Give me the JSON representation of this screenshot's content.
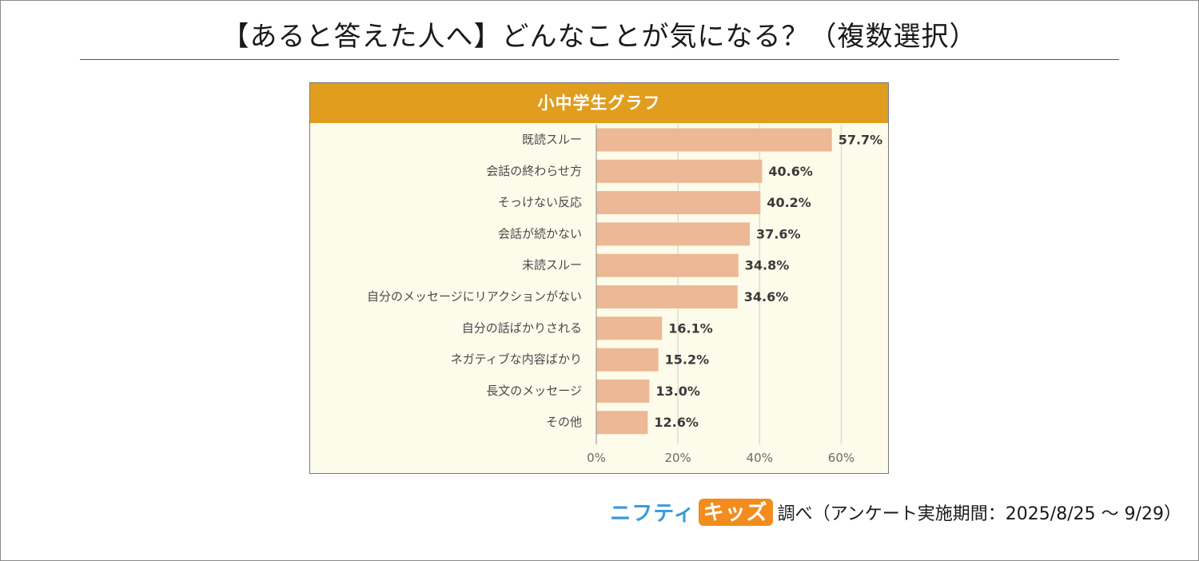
{
  "page": {
    "title": "【あると答えた人へ】どんなことが気になる？（複数選択）",
    "footer": {
      "brand_part1": "ニフティ",
      "brand_part2": "キッズ",
      "note": "調べ（アンケート実施期間：2025/8/25 ～ 9/29）"
    }
  },
  "colors": {
    "header_bg": "#e09d1e",
    "bar_fill": "#ecb896",
    "plot_bg": "#fdfbea",
    "grid": "#dcdcd2"
  },
  "chart_data": {
    "type": "bar",
    "orientation": "horizontal",
    "title": "小中学生グラフ",
    "categories": [
      "既読スルー",
      "会話の終わらせ方",
      "そっけない反応",
      "会話が続かない",
      "未読スルー",
      "自分のメッセージにリアクションがない",
      "自分の話ばかりされる",
      "ネガティブな内容ばかり",
      "長文のメッセージ",
      "その他"
    ],
    "values": [
      57.7,
      40.6,
      40.2,
      37.6,
      34.8,
      34.6,
      16.1,
      15.2,
      13.0,
      12.6
    ],
    "value_labels": [
      "57.7%",
      "40.6%",
      "40.2%",
      "37.6%",
      "34.8%",
      "34.6%",
      "16.1%",
      "15.2%",
      "13.0%",
      "12.6%"
    ],
    "xlim": [
      0,
      65
    ],
    "xticks": [
      0,
      20,
      40,
      60
    ],
    "xtick_labels": [
      "0%",
      "20%",
      "40%",
      "60%"
    ],
    "grid": true,
    "xlabel": "",
    "ylabel": ""
  }
}
